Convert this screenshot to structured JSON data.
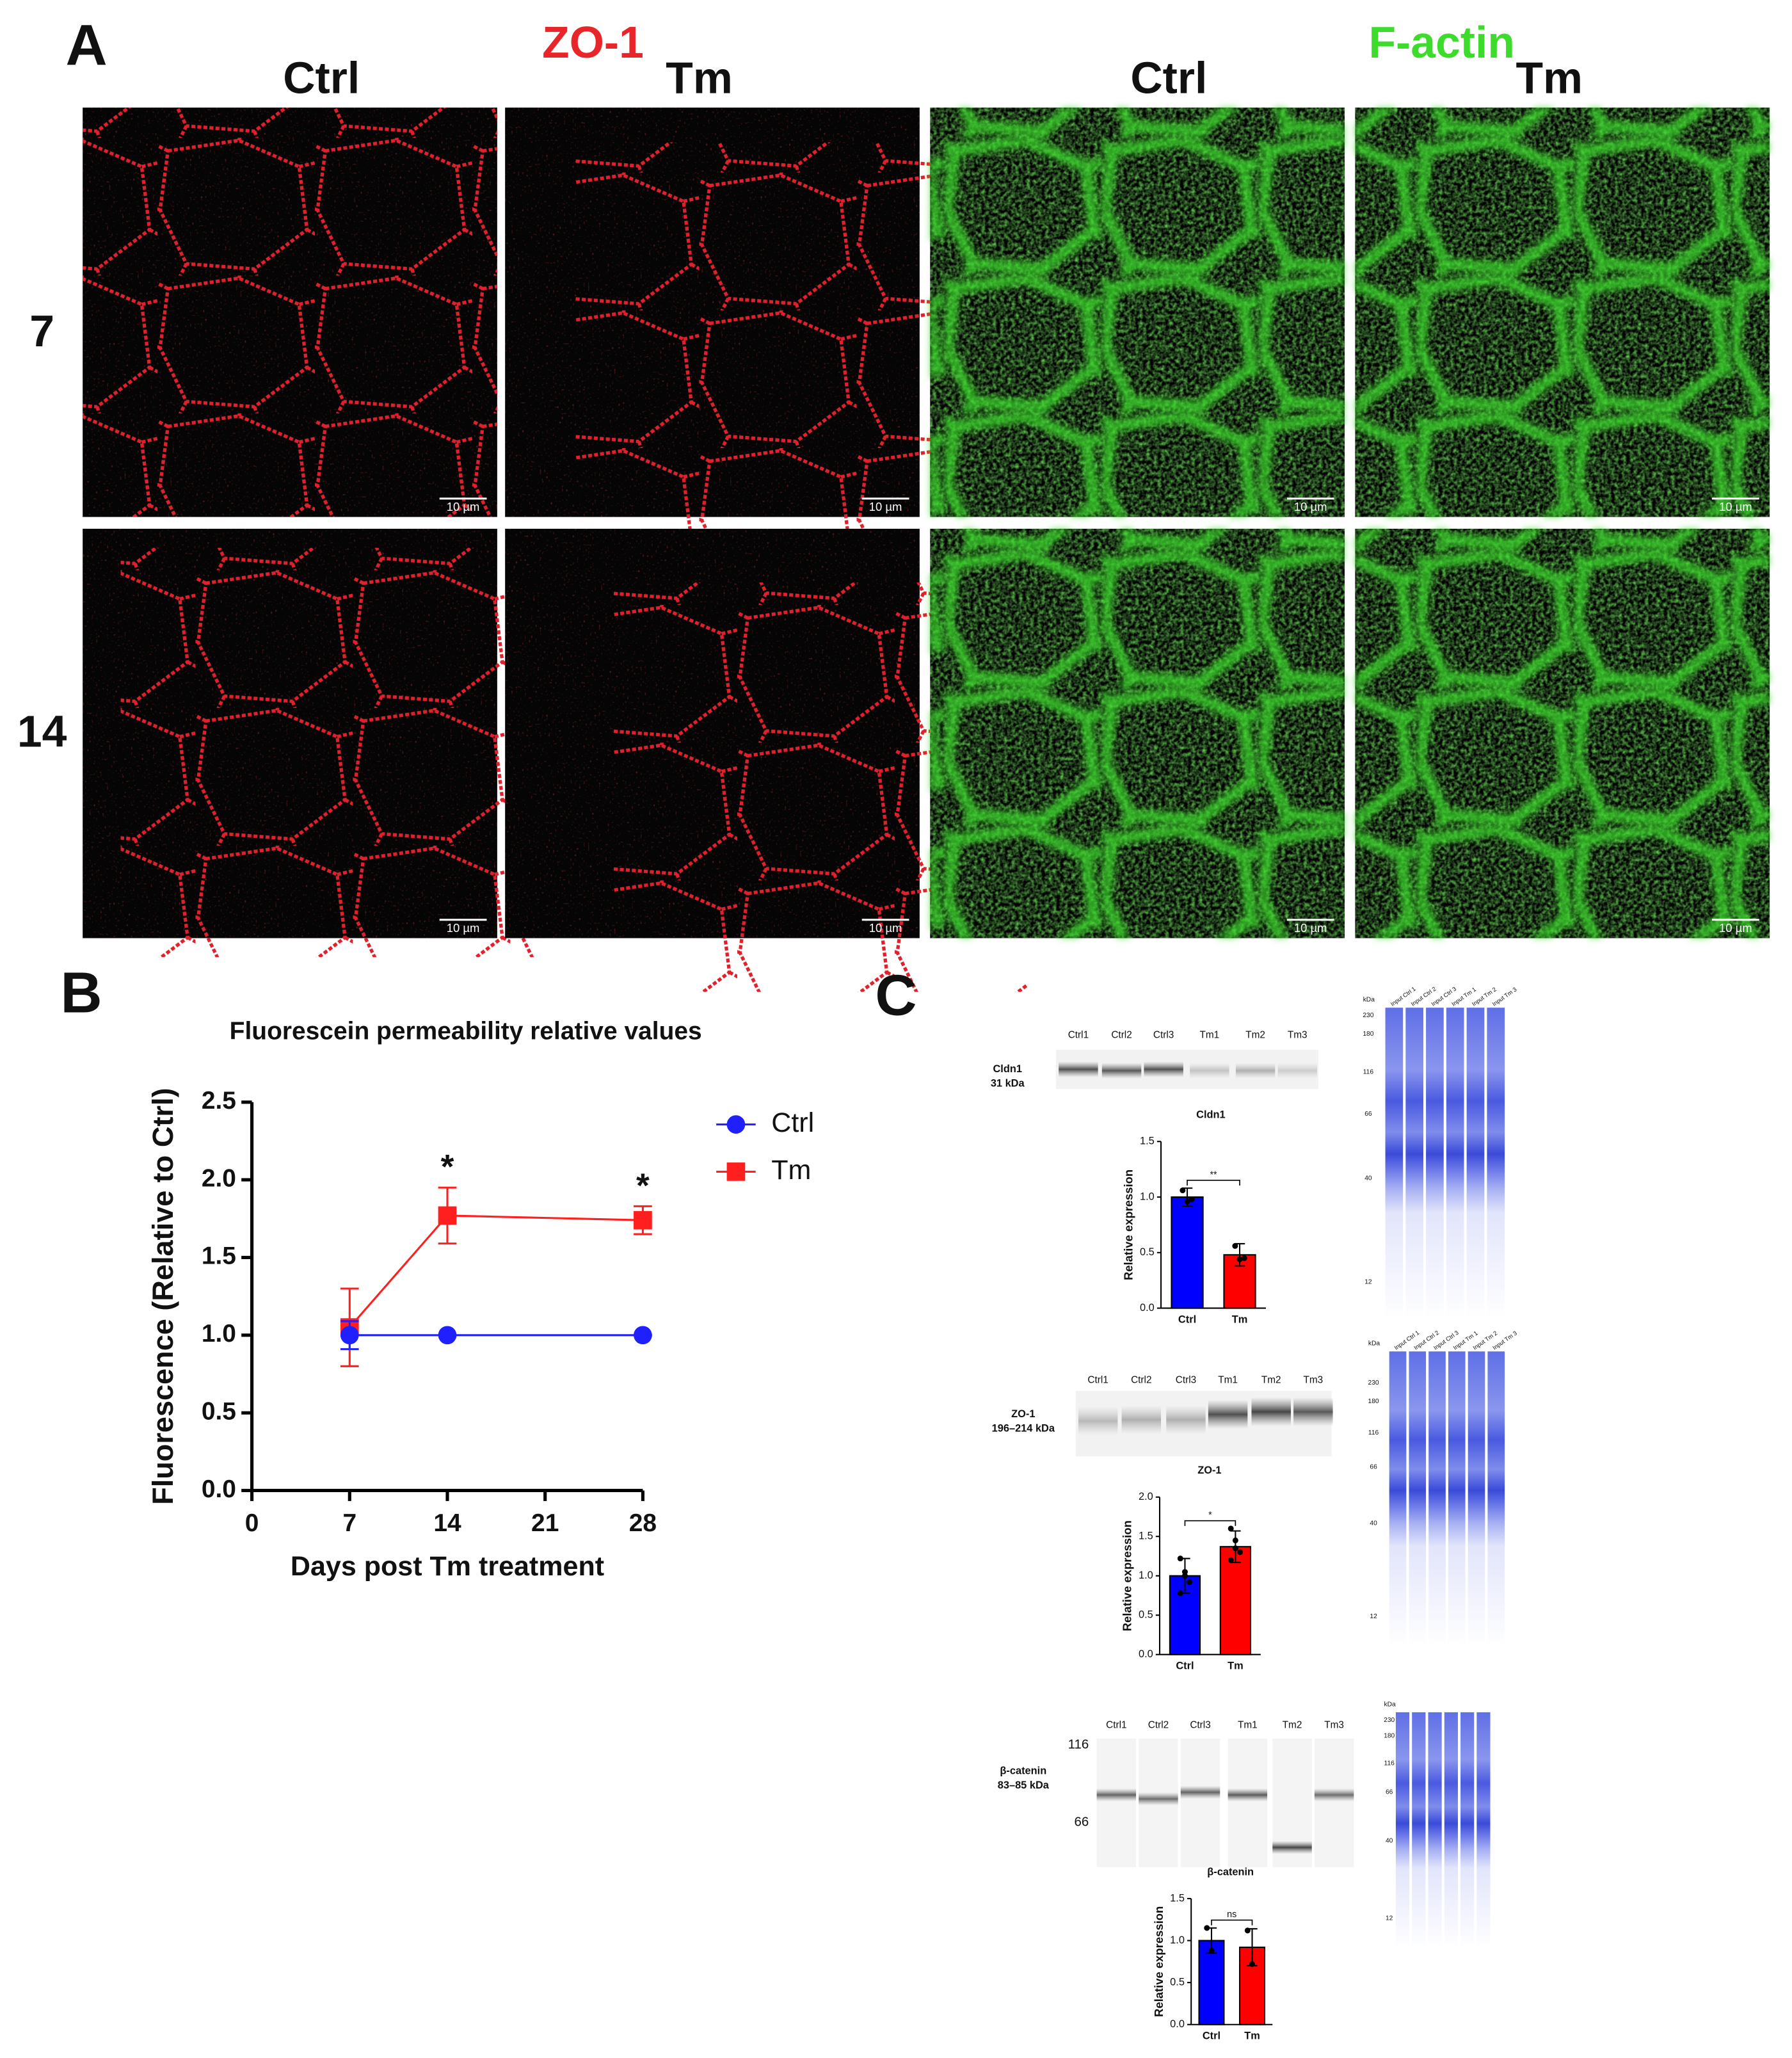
{
  "panel_a": {
    "label": "A",
    "stains": [
      {
        "name": "ZO-1",
        "color": "#e8262a",
        "conditions": [
          "Ctrl",
          "Tm"
        ]
      },
      {
        "name": "F-actin",
        "color": "#3ddc2c",
        "conditions": [
          "Ctrl",
          "Tm"
        ]
      }
    ],
    "days": [
      "7",
      "14"
    ],
    "scale_bar": "10 µm"
  },
  "panel_b": {
    "label": "B"
  },
  "panel_c": {
    "label": "C",
    "blots": [
      {
        "protein": "Cldn1",
        "size": "31 kDa",
        "lanes": [
          "Ctrl1",
          "Ctrl2",
          "Ctrl3",
          "Tm1",
          "Tm2",
          "Tm3"
        ],
        "marker_unit": "kDa",
        "markers": [
          "230",
          "180",
          "116",
          "66",
          "40",
          "12"
        ],
        "input_lanes": [
          "Input Ctrl 1",
          "Input Ctrl 2",
          "Input Ctrl 3",
          "Input Tm 1",
          "Input Tm 2",
          "Input Tm 3"
        ]
      },
      {
        "protein": "ZO-1",
        "size": "196–214 kDa",
        "lanes": [
          "Ctrl1",
          "Ctrl2",
          "Ctrl3",
          "Tm1",
          "Tm2",
          "Tm3"
        ],
        "marker_unit": "kDa",
        "markers": [
          "230",
          "180",
          "116",
          "66",
          "40",
          "12"
        ],
        "input_lanes": [
          "Input Ctrl 1",
          "Input Ctrl 2",
          "Input Ctrl 3",
          "Input Tm 1",
          "Input Tm 2",
          "Input Tm 3"
        ]
      },
      {
        "protein": "β-catenin",
        "size": "83–85 kDa",
        "lanes": [
          "Ctrl1",
          "Ctrl2",
          "Ctrl3",
          "Tm1",
          "Tm2",
          "Tm3"
        ],
        "ladder": [
          "116",
          "66"
        ],
        "marker_unit": "kDa",
        "markers": [
          "230",
          "180",
          "116",
          "66",
          "40",
          "12"
        ]
      }
    ]
  },
  "chart_data": [
    {
      "type": "line",
      "title": "Fluorescein permeability relative values",
      "x_label": "Days post Tm treatment",
      "y_label": "Fluorescence (Relative to Ctrl)",
      "x": [
        7,
        14,
        28
      ],
      "series": [
        {
          "name": "Ctrl",
          "color": "#1f1fff",
          "marker": "circle",
          "values": [
            1,
            1,
            1
          ],
          "errors": [
            0.09,
            0,
            0
          ]
        },
        {
          "name": "Tm",
          "color": "#ff1f1f",
          "marker": "square",
          "values": [
            1.05,
            1.77,
            1.74
          ],
          "errors": [
            0.25,
            0.18,
            0.09
          ]
        }
      ],
      "annotations": [
        {
          "x": 14,
          "text": "*"
        },
        {
          "x": 28,
          "text": "*"
        }
      ],
      "xlim": [
        0,
        28
      ],
      "xticks": [
        0,
        7,
        14,
        21,
        28
      ],
      "ylim": [
        0,
        2.5
      ],
      "yticks": [
        {
          "value": 0,
          "label": "0.0"
        },
        0.5,
        {
          "value": 1,
          "label": "1.0"
        },
        1.5,
        {
          "value": 2,
          "label": "2.0"
        },
        2.5
      ],
      "legend": "right"
    },
    {
      "type": "bar",
      "title": "Cldn1",
      "y_label": "Relative expression",
      "categories": [
        "Ctrl",
        "Tm"
      ],
      "values": [
        1.0,
        0.48
      ],
      "errors": [
        0.08,
        0.1
      ],
      "points": [
        [
          1.06,
          0.96,
          0.98
        ],
        [
          0.56,
          0.44,
          0.45
        ]
      ],
      "colors": [
        "#0000ff",
        "#ff0000"
      ],
      "significance": "**",
      "ylim": [
        0,
        1.5
      ],
      "yticks": [
        {
          "value": 0,
          "label": "0.0"
        },
        0.5,
        {
          "value": 1,
          "label": "1.0"
        },
        1.5
      ]
    },
    {
      "type": "bar",
      "title": "ZO-1",
      "y_label": "Relative expression",
      "categories": [
        "Ctrl",
        "Tm"
      ],
      "values": [
        1.0,
        1.37
      ],
      "errors": [
        0.22,
        0.2
      ],
      "points": [
        [
          1.22,
          1.05,
          0.92,
          0.78,
          1.0
        ],
        [
          1.6,
          1.45,
          1.3,
          1.2,
          1.35
        ]
      ],
      "colors": [
        "#0000ff",
        "#ff0000"
      ],
      "significance": "*",
      "ylim": [
        0,
        2
      ],
      "yticks": [
        {
          "value": 0,
          "label": "0.0"
        },
        0.5,
        {
          "value": 1,
          "label": "1.0"
        },
        1.5,
        {
          "value": 2,
          "label": "2.0"
        }
      ]
    },
    {
      "type": "bar",
      "title": "β-catenin",
      "y_label": "Relative expression",
      "categories": [
        "Ctrl",
        "Tm"
      ],
      "values": [
        1.0,
        0.92
      ],
      "errors": [
        0.15,
        0.22
      ],
      "points": [
        [
          1.15,
          0.88
        ],
        [
          1.12,
          0.72
        ]
      ],
      "colors": [
        "#0000ff",
        "#ff0000"
      ],
      "significance": "ns",
      "ylim": [
        0,
        1.5
      ],
      "yticks": [
        {
          "value": 0,
          "label": "0.0"
        },
        0.5,
        {
          "value": 1,
          "label": "1.0"
        },
        1.5
      ]
    }
  ]
}
